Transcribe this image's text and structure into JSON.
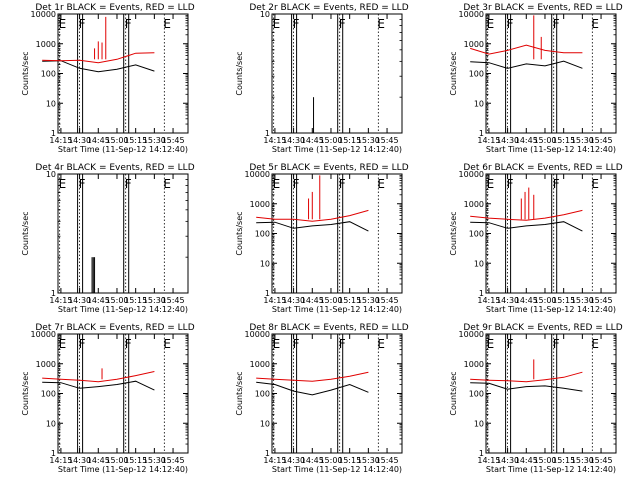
{
  "chart_data": [
    {
      "type": "line",
      "title": "Det 1r BLACK = Events, RED = LLD",
      "ylabel": "Counts/sec",
      "xlabel": "Start Time (11-Sep-12 14:12:40)",
      "y_scale": "log",
      "ylim": [
        1,
        10000
      ],
      "yticks": [
        "1",
        "10",
        "100",
        "1000",
        "10000"
      ],
      "x_ticks": [
        "14:15",
        "14:30",
        "14:45",
        "15:00",
        "15:15",
        "15:30",
        "15:45"
      ],
      "flags": [
        {
          "label": "E",
          "time": "14:14"
        },
        {
          "label": "F",
          "time": "14:30"
        },
        {
          "label": "F",
          "time": "15:07"
        },
        {
          "label": "E",
          "time": "15:38"
        }
      ],
      "series": [
        {
          "color": "#000000",
          "values": [
            [
              14.0,
              260
            ],
            [
              14.25,
              270
            ],
            [
              14.5,
              150
            ],
            [
              14.75,
              115
            ],
            [
              15.0,
              140
            ],
            [
              15.25,
              195
            ],
            [
              15.5,
              120
            ],
            [
              15.75,
              null
            ]
          ]
        },
        {
          "color": "#e00000",
          "values": [
            [
              14.0,
              280
            ],
            [
              14.25,
              270
            ],
            [
              14.5,
              280
            ],
            [
              14.75,
              230
            ],
            [
              15.0,
              300
            ],
            [
              15.25,
              480
            ],
            [
              15.5,
              500
            ],
            [
              15.75,
              null
            ]
          ]
        }
      ],
      "spikes": [
        {
          "t": "14:42",
          "peak": 700
        },
        {
          "t": "14:45",
          "peak": 1200
        },
        {
          "t": "14:48",
          "peak": 1100
        },
        {
          "t": "14:51",
          "peak": 8000
        }
      ]
    },
    {
      "type": "line",
      "title": "Det 2r BLACK = Events, RED = LLD",
      "ylabel": "Counts/sec",
      "xlabel": "Start Time (11-Sep-12 14:12:40)",
      "y_scale": "log",
      "ylim": [
        1,
        10
      ],
      "yticks": [
        "1",
        "10"
      ],
      "x_ticks": [
        "14:15",
        "14:30",
        "14:45",
        "15:00",
        "15:15",
        "15:30",
        "15:45"
      ],
      "flags": [
        {
          "label": "E",
          "time": "14:14"
        },
        {
          "label": "F",
          "time": "14:30"
        },
        {
          "label": "F",
          "time": "15:07"
        },
        {
          "label": "E",
          "time": "15:38"
        }
      ],
      "series": [
        {
          "color": "#000000",
          "values": []
        },
        {
          "color": "#e00000",
          "values": []
        }
      ],
      "spikes": [
        {
          "t": "14:46",
          "peak": 2
        }
      ]
    },
    {
      "type": "line",
      "title": "Det 3r BLACK = Events, RED = LLD",
      "ylabel": "Counts/sec",
      "xlabel": "Start Time (11-Sep-12 14:12:40)",
      "y_scale": "log",
      "ylim": [
        1,
        10000
      ],
      "yticks": [
        "1",
        "10",
        "100",
        "1000",
        "10000"
      ],
      "x_ticks": [
        "14:15",
        "14:30",
        "14:45",
        "15:00",
        "15:15",
        "15:30",
        "15:45"
      ],
      "flags": [
        {
          "label": "E",
          "time": "14:14"
        },
        {
          "label": "F",
          "time": "14:30"
        },
        {
          "label": "F",
          "time": "15:07"
        },
        {
          "label": "E",
          "time": "15:38"
        }
      ],
      "series": [
        {
          "color": "#000000",
          "values": [
            [
              14.0,
              250
            ],
            [
              14.25,
              230
            ],
            [
              14.5,
              150
            ],
            [
              14.75,
              210
            ],
            [
              15.0,
              180
            ],
            [
              15.25,
              260
            ],
            [
              15.5,
              150
            ],
            [
              15.75,
              null
            ]
          ]
        },
        {
          "color": "#e00000",
          "values": [
            [
              14.0,
              700
            ],
            [
              14.25,
              450
            ],
            [
              14.5,
              600
            ],
            [
              14.75,
              900
            ],
            [
              15.0,
              600
            ],
            [
              15.25,
              500
            ],
            [
              15.5,
              500
            ],
            [
              15.75,
              null
            ]
          ]
        }
      ],
      "spikes": [
        {
          "t": "14:51",
          "peak": 9000
        },
        {
          "t": "14:57",
          "peak": 1700
        }
      ]
    },
    {
      "type": "line",
      "title": "Det 4r BLACK = Events, RED = LLD",
      "ylabel": "Counts/sec",
      "xlabel": "Start Time (11-Sep-12 14:12:40)",
      "y_scale": "log",
      "ylim": [
        1,
        10
      ],
      "yticks": [
        "1",
        "10"
      ],
      "x_ticks": [
        "14:15",
        "14:30",
        "14:45",
        "15:00",
        "15:15",
        "15:30",
        "15:45"
      ],
      "flags": [
        {
          "label": "E",
          "time": "14:14"
        },
        {
          "label": "F",
          "time": "14:30"
        },
        {
          "label": "F",
          "time": "15:07"
        },
        {
          "label": "E",
          "time": "15:38"
        }
      ],
      "series": [
        {
          "color": "#000000",
          "values": []
        },
        {
          "color": "#e00000",
          "values": []
        }
      ],
      "spikes": [
        {
          "t": "14:40",
          "peak": 2
        },
        {
          "t": "14:41",
          "peak": 2
        },
        {
          "t": "14:42",
          "peak": 2
        }
      ]
    },
    {
      "type": "line",
      "title": "Det 5r BLACK = Events, RED = LLD",
      "ylabel": "Counts/sec",
      "xlabel": "Start Time (11-Sep-12 14:12:40)",
      "y_scale": "log",
      "ylim": [
        1,
        10000
      ],
      "yticks": [
        "1",
        "10",
        "100",
        "1000",
        "10000"
      ],
      "x_ticks": [
        "14:15",
        "14:30",
        "14:45",
        "15:00",
        "15:15",
        "15:30",
        "15:45"
      ],
      "flags": [
        {
          "label": "E",
          "time": "14:14"
        },
        {
          "label": "F",
          "time": "14:30"
        },
        {
          "label": "F",
          "time": "15:07"
        },
        {
          "label": "E",
          "time": "15:38"
        }
      ],
      "series": [
        {
          "color": "#000000",
          "values": [
            [
              14.0,
              230
            ],
            [
              14.25,
              240
            ],
            [
              14.5,
              150
            ],
            [
              14.75,
              180
            ],
            [
              15.0,
              200
            ],
            [
              15.25,
              250
            ],
            [
              15.5,
              120
            ],
            [
              15.75,
              null
            ]
          ]
        },
        {
          "color": "#e00000",
          "values": [
            [
              14.0,
              350
            ],
            [
              14.25,
              300
            ],
            [
              14.5,
              300
            ],
            [
              14.75,
              260
            ],
            [
              15.0,
              300
            ],
            [
              15.25,
              400
            ],
            [
              15.5,
              600
            ],
            [
              15.75,
              null
            ]
          ]
        }
      ],
      "spikes": [
        {
          "t": "14:42",
          "peak": 1500
        },
        {
          "t": "14:45",
          "peak": 2500
        },
        {
          "t": "14:51",
          "peak": 9000
        }
      ]
    },
    {
      "type": "line",
      "title": "Det 6r BLACK = Events, RED = LLD",
      "ylabel": "Counts/sec",
      "xlabel": "Start Time (11-Sep-12 14:12:40)",
      "y_scale": "log",
      "ylim": [
        1,
        10000
      ],
      "yticks": [
        "1",
        "10",
        "100",
        "1000",
        "10000"
      ],
      "x_ticks": [
        "14:15",
        "14:30",
        "14:45",
        "15:00",
        "15:15",
        "15:30",
        "15:45"
      ],
      "flags": [
        {
          "label": "E",
          "time": "14:14"
        },
        {
          "label": "F",
          "time": "14:30"
        },
        {
          "label": "F",
          "time": "15:07"
        },
        {
          "label": "E",
          "time": "15:38"
        }
      ],
      "series": [
        {
          "color": "#000000",
          "values": [
            [
              14.0,
              240
            ],
            [
              14.25,
              230
            ],
            [
              14.5,
              150
            ],
            [
              14.75,
              180
            ],
            [
              15.0,
              200
            ],
            [
              15.25,
              250
            ],
            [
              15.5,
              120
            ],
            [
              15.75,
              null
            ]
          ]
        },
        {
          "color": "#e00000",
          "values": [
            [
              14.0,
              380
            ],
            [
              14.25,
              330
            ],
            [
              14.5,
              300
            ],
            [
              14.75,
              280
            ],
            [
              15.0,
              330
            ],
            [
              15.25,
              430
            ],
            [
              15.5,
              600
            ],
            [
              15.75,
              null
            ]
          ]
        }
      ],
      "spikes": [
        {
          "t": "14:41",
          "peak": 1500
        },
        {
          "t": "14:44",
          "peak": 2500
        },
        {
          "t": "14:47",
          "peak": 3500
        },
        {
          "t": "14:51",
          "peak": 2000
        }
      ]
    },
    {
      "type": "line",
      "title": "Det 7r BLACK = Events, RED = LLD",
      "ylabel": "Counts/sec",
      "xlabel": "Start Time (11-Sep-12 14:12:40)",
      "y_scale": "log",
      "ylim": [
        1,
        10000
      ],
      "yticks": [
        "1",
        "10",
        "100",
        "1000",
        "10000"
      ],
      "x_ticks": [
        "14:15",
        "14:30",
        "14:45",
        "15:00",
        "15:15",
        "15:30",
        "15:45"
      ],
      "flags": [
        {
          "label": "E",
          "time": "14:14"
        },
        {
          "label": "F",
          "time": "14:30"
        },
        {
          "label": "F",
          "time": "15:07"
        },
        {
          "label": "E",
          "time": "15:38"
        }
      ],
      "series": [
        {
          "color": "#000000",
          "values": [
            [
              14.0,
              240
            ],
            [
              14.25,
              230
            ],
            [
              14.5,
              150
            ],
            [
              14.75,
              170
            ],
            [
              15.0,
              200
            ],
            [
              15.25,
              260
            ],
            [
              15.5,
              130
            ],
            [
              15.75,
              null
            ]
          ]
        },
        {
          "color": "#e00000",
          "values": [
            [
              14.0,
              330
            ],
            [
              14.25,
              300
            ],
            [
              14.5,
              280
            ],
            [
              14.75,
              250
            ],
            [
              15.0,
              300
            ],
            [
              15.25,
              400
            ],
            [
              15.5,
              550
            ],
            [
              15.75,
              null
            ]
          ]
        }
      ],
      "spikes": [
        {
          "t": "14:48",
          "peak": 700
        }
      ]
    },
    {
      "type": "line",
      "title": "Det 8r BLACK = Events, RED = LLD",
      "ylabel": "Counts/sec",
      "xlabel": "Start Time (11-Sep-12 14:12:40)",
      "y_scale": "log",
      "ylim": [
        1,
        10000
      ],
      "yticks": [
        "1",
        "10",
        "100",
        "1000",
        "10000"
      ],
      "x_ticks": [
        "14:15",
        "14:30",
        "14:45",
        "15:00",
        "15:15",
        "15:30",
        "15:45"
      ],
      "flags": [
        {
          "label": "E",
          "time": "14:14"
        },
        {
          "label": "F",
          "time": "14:30"
        },
        {
          "label": "F",
          "time": "15:07"
        },
        {
          "label": "E",
          "time": "15:38"
        }
      ],
      "series": [
        {
          "color": "#000000",
          "values": [
            [
              14.0,
              240
            ],
            [
              14.25,
              200
            ],
            [
              14.5,
              120
            ],
            [
              14.75,
              90
            ],
            [
              15.0,
              130
            ],
            [
              15.25,
              200
            ],
            [
              15.5,
              110
            ],
            [
              15.75,
              null
            ]
          ]
        },
        {
          "color": "#e00000",
          "values": [
            [
              14.0,
              330
            ],
            [
              14.25,
              300
            ],
            [
              14.5,
              280
            ],
            [
              14.75,
              260
            ],
            [
              15.0,
              300
            ],
            [
              15.25,
              380
            ],
            [
              15.5,
              520
            ],
            [
              15.75,
              null
            ]
          ]
        }
      ],
      "spikes": []
    },
    {
      "type": "line",
      "title": "Det 9r BLACK = Events, RED = LLD",
      "ylabel": "Counts/sec",
      "xlabel": "Start Time (11-Sep-12 14:12:40)",
      "y_scale": "log",
      "ylim": [
        1,
        10000
      ],
      "yticks": [
        "1",
        "10",
        "100",
        "1000",
        "10000"
      ],
      "x_ticks": [
        "14:15",
        "14:30",
        "14:45",
        "15:00",
        "15:15",
        "15:30",
        "15:45"
      ],
      "flags": [
        {
          "label": "E",
          "time": "14:14"
        },
        {
          "label": "F",
          "time": "14:30"
        },
        {
          "label": "F",
          "time": "15:07"
        },
        {
          "label": "E",
          "time": "15:38"
        }
      ],
      "series": [
        {
          "color": "#000000",
          "values": [
            [
              14.0,
              230
            ],
            [
              14.25,
              220
            ],
            [
              14.5,
              140
            ],
            [
              14.75,
              170
            ],
            [
              15.0,
              180
            ],
            [
              15.25,
              150
            ],
            [
              15.5,
              120
            ],
            [
              15.75,
              null
            ]
          ]
        },
        {
          "color": "#e00000",
          "values": [
            [
              14.0,
              300
            ],
            [
              14.25,
              280
            ],
            [
              14.5,
              270
            ],
            [
              14.75,
              250
            ],
            [
              15.0,
              290
            ],
            [
              15.25,
              350
            ],
            [
              15.5,
              520
            ],
            [
              15.75,
              null
            ]
          ]
        }
      ],
      "spikes": [
        {
          "t": "14:51",
          "peak": 1400
        }
      ]
    }
  ]
}
